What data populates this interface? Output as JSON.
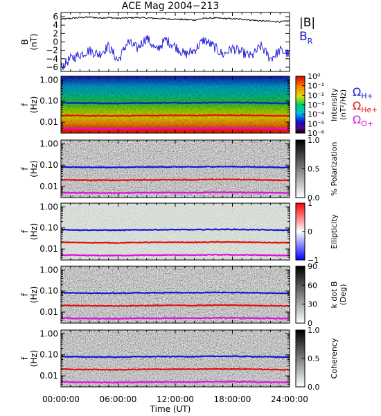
{
  "title": "ACE Mag 2004−213",
  "xaxis": {
    "label": "Time (UT)",
    "ticks": [
      "00:00:00",
      "06:00:00",
      "12:00:00",
      "18:00:00",
      "24:00:00"
    ],
    "range_hours": [
      0,
      24
    ]
  },
  "colors": {
    "blue": "#1515d6",
    "red": "#e01010",
    "magenta": "#e010e0",
    "black": "#000000"
  },
  "chart_data": [
    {
      "type": "line",
      "ylabel": "B\n(nT)",
      "ylabel_lines": [
        "B",
        "(nT)"
      ],
      "ylim": [
        -7,
        7
      ],
      "yticks": [
        "6",
        "4",
        "2",
        "0",
        "−2",
        "−4",
        "−6"
      ],
      "ytick_values": [
        6,
        4,
        2,
        0,
        -2,
        -4,
        -6
      ],
      "legend": [
        {
          "label": "|B|",
          "color": "#000000"
        },
        {
          "label": "B",
          "sub": "R",
          "color": "#1515d6"
        }
      ],
      "series": [
        {
          "name": "|B|",
          "color": "#000000",
          "x": [
            0,
            1,
            2,
            3,
            4,
            5,
            6,
            7,
            8,
            9,
            10,
            11,
            12,
            13,
            14,
            15,
            16,
            17,
            18,
            19,
            20,
            21,
            22,
            23,
            24
          ],
          "y": [
            5.4,
            5.6,
            5.8,
            5.9,
            5.7,
            5.8,
            5.6,
            5.7,
            5.8,
            5.7,
            5.6,
            5.5,
            5.4,
            5.3,
            5.2,
            5.6,
            5.7,
            5.6,
            5.5,
            5.4,
            5.2,
            5.0,
            4.9,
            4.8,
            5.0
          ]
        },
        {
          "name": "B_R",
          "color": "#1515d6",
          "x": [
            0,
            1,
            2,
            3,
            4,
            5,
            6,
            7,
            8,
            9,
            10,
            11,
            12,
            13,
            14,
            15,
            16,
            17,
            18,
            19,
            20,
            21,
            22,
            23,
            24
          ],
          "y": [
            -6.0,
            -4.0,
            -3.0,
            -2.0,
            -3.0,
            -1.0,
            -4.5,
            0.0,
            -1.5,
            1.0,
            -2.0,
            0.5,
            -1.0,
            -3.0,
            -2.0,
            0.5,
            -1.0,
            -3.0,
            -1.5,
            -2.5,
            -3.5,
            -1.0,
            -4.0,
            -2.0,
            -3.0
          ]
        }
      ]
    },
    {
      "type": "heatmap",
      "ylabel_lines": [
        "f",
        "(Hz)"
      ],
      "yscale": "log",
      "ylim": [
        0.003,
        1.5
      ],
      "yticks": [
        "1.00",
        "0.10",
        "0.01"
      ],
      "ytick_values": [
        1,
        0.1,
        0.01
      ],
      "colorbar": {
        "label_lines": [
          "Intensity",
          "(nT²/Hz)"
        ],
        "ticks": [
          "10⁰",
          "10⁻¹",
          "10⁻²",
          "10⁻³",
          "10⁻⁴",
          "10⁻⁵",
          "10⁻⁶"
        ],
        "scale": "log",
        "range": [
          1e-06,
          1
        ]
      },
      "side_legend": [
        {
          "label": "Ω",
          "sub": "H+",
          "color": "#1515d6"
        },
        {
          "label": "Ω",
          "sub": "He+",
          "color": "#e01010"
        },
        {
          "label": "Ω",
          "sub": "O+",
          "color": "#e010e0"
        }
      ]
    },
    {
      "type": "heatmap",
      "ylabel_lines": [
        "f",
        "(Hz)"
      ],
      "yscale": "log",
      "ylim": [
        0.003,
        1.5
      ],
      "yticks": [
        "1.00",
        "0.10",
        "0.01"
      ],
      "ytick_values": [
        1,
        0.1,
        0.01
      ],
      "colorbar": {
        "label_lines": [
          "% Polarization"
        ],
        "ticks": [
          "1.0",
          "0.5",
          "0.0"
        ],
        "range": [
          0,
          1
        ]
      }
    },
    {
      "type": "heatmap",
      "ylabel_lines": [
        "f",
        "(Hz)"
      ],
      "yscale": "log",
      "ylim": [
        0.003,
        1.5
      ],
      "yticks": [
        "1.00",
        "0.10",
        "0.01"
      ],
      "ytick_values": [
        1,
        0.1,
        0.01
      ],
      "colorbar": {
        "label_lines": [
          "Ellipticity"
        ],
        "ticks": [
          "1",
          "0",
          "−1"
        ],
        "range": [
          -1,
          1
        ]
      }
    },
    {
      "type": "heatmap",
      "ylabel_lines": [
        "f",
        "(Hz)"
      ],
      "yscale": "log",
      "ylim": [
        0.003,
        1.5
      ],
      "yticks": [
        "1.00",
        "0.10",
        "0.01"
      ],
      "ytick_values": [
        1,
        0.1,
        0.01
      ],
      "colorbar": {
        "label_lines": [
          "k dot B",
          "(Deg)"
        ],
        "ticks": [
          "90",
          "60",
          "30",
          "0"
        ],
        "range": [
          0,
          90
        ]
      }
    },
    {
      "type": "heatmap",
      "ylabel_lines": [
        "f",
        "(Hz)"
      ],
      "yscale": "log",
      "ylim": [
        0.003,
        1.5
      ],
      "yticks": [
        "1.00",
        "0.10",
        "0.01"
      ],
      "ytick_values": [
        1,
        0.1,
        0.01
      ],
      "colorbar": {
        "label_lines": [
          "Coherency"
        ],
        "ticks": [
          "1.0",
          "0.5",
          "0.0"
        ],
        "range": [
          0,
          1
        ]
      }
    }
  ],
  "gyrofrequency_lines": [
    {
      "name": "ΩH+",
      "color": "#1515d6",
      "x": [
        0,
        2,
        4,
        6,
        8,
        10,
        12,
        14,
        16,
        18,
        20,
        22,
        24
      ],
      "f": [
        0.083,
        0.08,
        0.079,
        0.078,
        0.081,
        0.082,
        0.083,
        0.082,
        0.085,
        0.085,
        0.083,
        0.08,
        0.078
      ]
    },
    {
      "name": "ΩHe+",
      "color": "#e01010",
      "x": [
        0,
        2,
        4,
        6,
        8,
        10,
        12,
        14,
        16,
        18,
        20,
        22,
        24
      ],
      "f": [
        0.021,
        0.02,
        0.0198,
        0.0195,
        0.0203,
        0.0205,
        0.0208,
        0.0205,
        0.0213,
        0.0213,
        0.0208,
        0.02,
        0.0195
      ]
    },
    {
      "name": "ΩO+",
      "color": "#e010e0",
      "x": [
        0,
        2,
        4,
        6,
        8,
        10,
        12,
        14,
        16,
        18,
        20,
        22,
        24
      ],
      "f": [
        0.0052,
        0.005,
        0.0049,
        0.0049,
        0.0051,
        0.0051,
        0.0052,
        0.0051,
        0.0053,
        0.0053,
        0.0052,
        0.005,
        0.0049
      ]
    }
  ]
}
